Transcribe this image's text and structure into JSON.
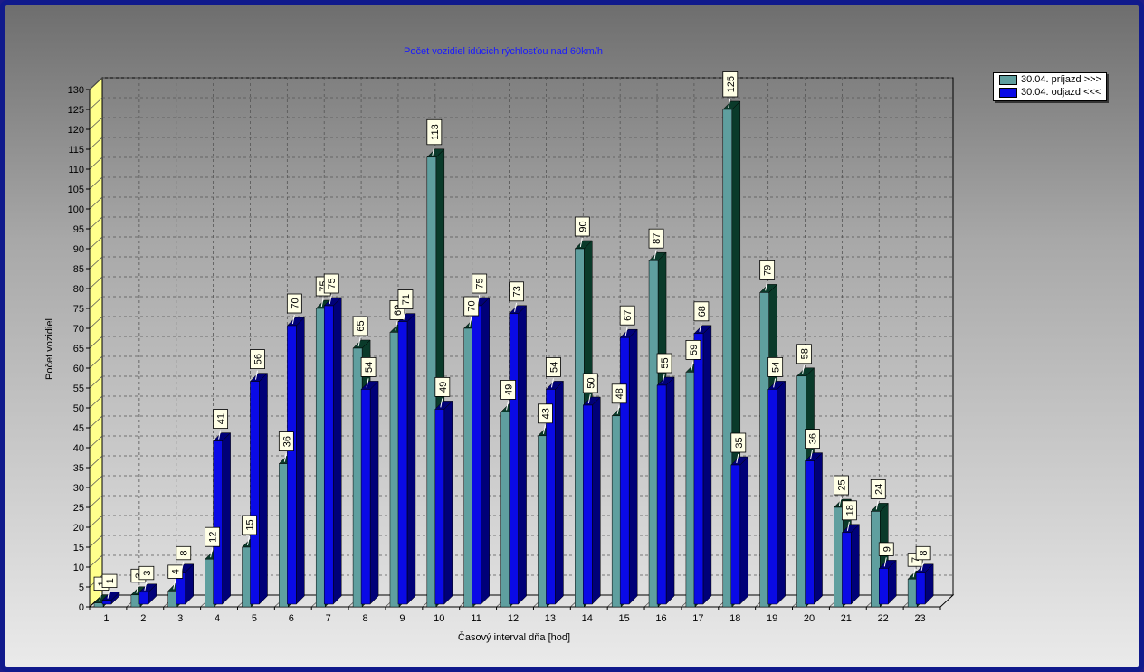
{
  "chart_data": {
    "type": "bar",
    "title": "Počet vozidiel idúcich rýchlosťou nad 60km/h",
    "xlabel": "Časový interval dňa [hod]",
    "ylabel": "Počet vozidiel",
    "ylim": [
      0,
      130
    ],
    "ytick_step": 5,
    "grid": true,
    "legend_position": "top-right",
    "categories": [
      "1",
      "2",
      "3",
      "4",
      "5",
      "6",
      "7",
      "8",
      "9",
      "10",
      "11",
      "12",
      "13",
      "14",
      "15",
      "16",
      "17",
      "18",
      "19",
      "20",
      "21",
      "22",
      "23"
    ],
    "series": [
      {
        "name": "30.04.  príjazd >>>",
        "color": "#5f9f9f",
        "dark_color": "#0a3a2a",
        "values": [
          1,
          3,
          4,
          12,
          15,
          36,
          75,
          65,
          69,
          113,
          70,
          49,
          43,
          90,
          48,
          87,
          59,
          125,
          79,
          58,
          25,
          24,
          7
        ]
      },
      {
        "name": "30.04.  odjazd <<<",
        "color": "#0a0ae6",
        "dark_color": "#000078",
        "values": [
          1,
          3,
          8,
          41,
          56,
          70,
          75,
          54,
          71,
          49,
          75,
          73,
          54,
          50,
          67,
          55,
          68,
          35,
          54,
          36,
          18,
          9,
          8
        ]
      }
    ]
  }
}
